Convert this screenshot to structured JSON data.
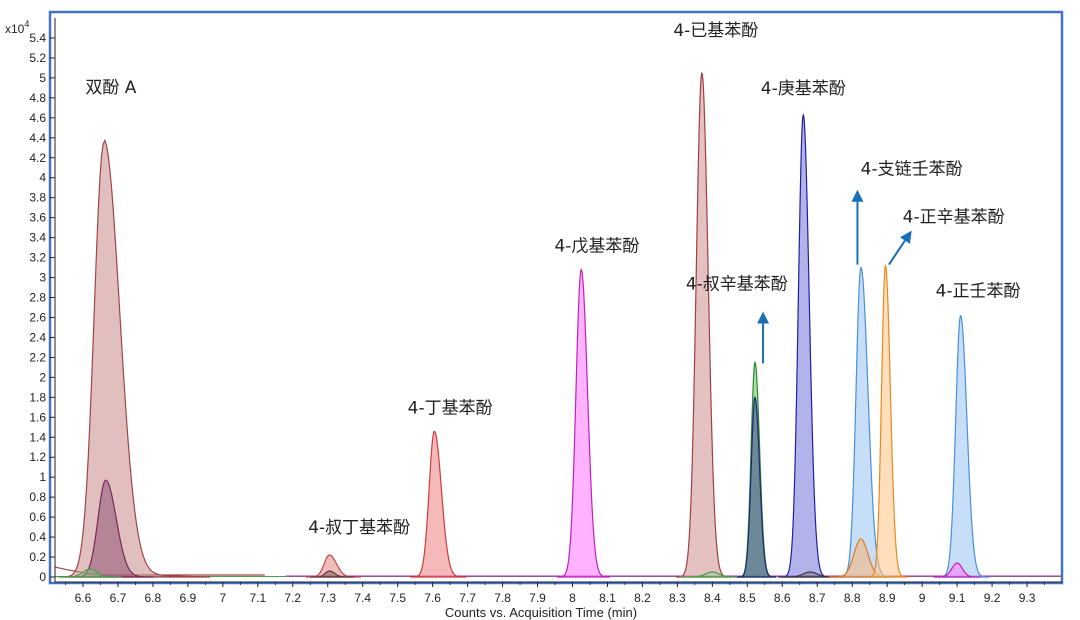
{
  "chart_data": {
    "type": "area",
    "title": "",
    "xlabel": "Counts vs. Acquisition Time (min)",
    "ylabel": "",
    "y_scale_label": "x10",
    "y_scale_exponent": "4",
    "xlim": [
      6.52,
      9.4
    ],
    "ylim": [
      -0.05,
      5.6
    ],
    "x_ticks": [
      6.6,
      6.7,
      6.8,
      6.9,
      7,
      7.1,
      7.2,
      7.3,
      7.4,
      7.5,
      7.6,
      7.7,
      7.8,
      7.9,
      8,
      8.1,
      8.2,
      8.3,
      8.4,
      8.5,
      8.6,
      8.7,
      8.8,
      8.9,
      9,
      9.1,
      9.2,
      9.3
    ],
    "y_ticks": [
      0,
      0.2,
      0.4,
      0.6,
      0.8,
      1,
      1.2,
      1.4,
      1.6,
      1.8,
      2,
      2.2,
      2.4,
      2.6,
      2.8,
      3,
      3.2,
      3.4,
      3.6,
      3.8,
      4,
      4.2,
      4.4,
      4.6,
      4.8,
      5,
      5.2,
      5.4
    ],
    "grid": false,
    "legend": "none",
    "peaks": [
      {
        "label": "双酚 A",
        "x": 6.66,
        "y": 4.35,
        "w1": 0.028,
        "w2": 0.045,
        "tail": 0.1,
        "stroke": "#a04545",
        "fill": "#c98b8b",
        "fill_opacity": 0.55
      },
      {
        "label": "",
        "x": 6.665,
        "y": 0.97,
        "w1": 0.022,
        "w2": 0.03,
        "tail": 0,
        "stroke": "#7a2a5a",
        "fill": "#8a4a6e",
        "fill_opacity": 0.5
      },
      {
        "label": "",
        "x": 6.62,
        "y": 0.08,
        "w1": 0.02,
        "w2": 0.02,
        "tail": 0,
        "stroke": "#4aa04a",
        "fill": "#7fcf7f",
        "fill_opacity": 0.4
      },
      {
        "label": "4-叔丁基苯酚",
        "x": 7.305,
        "y": 0.22,
        "w1": 0.015,
        "w2": 0.02,
        "tail": 0,
        "stroke": "#c04848",
        "fill": "#e89090",
        "fill_opacity": 0.6
      },
      {
        "label": "",
        "x": 7.305,
        "y": 0.06,
        "w1": 0.012,
        "w2": 0.015,
        "tail": 0,
        "stroke": "#5a3a3a",
        "fill": "#7a5a5a",
        "fill_opacity": 0.5
      },
      {
        "label": "4-丁基苯酚",
        "x": 7.605,
        "y": 1.46,
        "w1": 0.015,
        "w2": 0.02,
        "tail": 0,
        "stroke": "#d03a3a",
        "fill": "#f08a8a",
        "fill_opacity": 0.6
      },
      {
        "label": "4-戊基苯酚",
        "x": 8.025,
        "y": 3.08,
        "w1": 0.015,
        "w2": 0.018,
        "tail": 0,
        "stroke": "#c020c0",
        "fill": "#ff80ff",
        "fill_opacity": 0.6
      },
      {
        "label": "4-已基苯酚",
        "x": 8.37,
        "y": 5.05,
        "w1": 0.016,
        "w2": 0.018,
        "tail": 0,
        "stroke": "#a04040",
        "fill": "#d8a8a8",
        "fill_opacity": 0.7
      },
      {
        "label": "",
        "x": 8.4,
        "y": 0.05,
        "w1": 0.02,
        "w2": 0.02,
        "tail": 0,
        "stroke": "#40a040",
        "fill": "#90d090",
        "fill_opacity": 0.4
      },
      {
        "label": "4-叔辛基苯酚",
        "x": 8.522,
        "y": 2.15,
        "w1": 0.011,
        "w2": 0.013,
        "tail": 0,
        "stroke": "#2a8a2a",
        "fill": "#78c878",
        "fill_opacity": 0.6
      },
      {
        "label": "",
        "x": 8.522,
        "y": 1.8,
        "w1": 0.011,
        "w2": 0.013,
        "tail": 0,
        "stroke": "#1a2a7a",
        "fill": "#4a5a8a",
        "fill_opacity": 0.65
      },
      {
        "label": "4-庚基苯酚",
        "x": 8.66,
        "y": 4.63,
        "w1": 0.014,
        "w2": 0.017,
        "tail": 0,
        "stroke": "#2020a0",
        "fill": "#8080e0",
        "fill_opacity": 0.6
      },
      {
        "label": "",
        "x": 8.68,
        "y": 0.05,
        "w1": 0.02,
        "w2": 0.02,
        "tail": 0,
        "stroke": "#3a3a3a",
        "fill": "#6a6a6a",
        "fill_opacity": 0.4
      },
      {
        "label": "4-支链壬苯酚",
        "x": 8.825,
        "y": 3.1,
        "w1": 0.014,
        "w2": 0.02,
        "tail": 0,
        "stroke": "#4a90d8",
        "fill": "#a8cdf2",
        "fill_opacity": 0.65
      },
      {
        "label": "",
        "x": 8.825,
        "y": 0.38,
        "w1": 0.02,
        "w2": 0.02,
        "tail": 0,
        "stroke": "#e07a20",
        "fill": "#f5b880",
        "fill_opacity": 0.6
      },
      {
        "label": "4-正辛基苯酚",
        "x": 8.895,
        "y": 3.12,
        "w1": 0.011,
        "w2": 0.014,
        "tail": 0,
        "stroke": "#e88a20",
        "fill": "#ffc890",
        "fill_opacity": 0.6
      },
      {
        "label": "4-正壬苯酚",
        "x": 9.11,
        "y": 2.62,
        "w1": 0.014,
        "w2": 0.018,
        "tail": 0,
        "stroke": "#4a90d8",
        "fill": "#a8cdf2",
        "fill_opacity": 0.65
      },
      {
        "label": "",
        "x": 9.1,
        "y": 0.14,
        "w1": 0.015,
        "w2": 0.015,
        "tail": 0,
        "stroke": "#c020c0",
        "fill": "#ff80ff",
        "fill_opacity": 0.6
      }
    ],
    "annotations": [
      {
        "text": "双酚 A",
        "x": 6.68,
        "y": 4.85
      },
      {
        "text": "4-叔丁基苯酚",
        "x": 7.39,
        "y": 0.44
      },
      {
        "text": "4-丁基苯酚",
        "x": 7.65,
        "y": 1.64
      },
      {
        "text": "4-戊基苯酚",
        "x": 8.07,
        "y": 3.26
      },
      {
        "text": "4-已基苯酚",
        "x": 8.41,
        "y": 5.42
      },
      {
        "text": "4-叔辛基苯酚",
        "x": 8.47,
        "y": 2.88
      },
      {
        "text": "4-庚基苯酚",
        "x": 8.66,
        "y": 4.84
      },
      {
        "text": "4-支链壬苯酚",
        "x": 8.97,
        "y": 4.03
      },
      {
        "text": "4-正辛基苯酚",
        "x": 9.09,
        "y": 3.55
      },
      {
        "text": "4-正壬苯酚",
        "x": 9.16,
        "y": 2.81
      }
    ],
    "arrows": [
      {
        "x1": 8.545,
        "y1": 2.14,
        "x2": 8.545,
        "y2": 2.66,
        "color": "#1a6fb8"
      },
      {
        "x1": 8.815,
        "y1": 3.13,
        "x2": 8.815,
        "y2": 3.88,
        "color": "#1a6fb8"
      },
      {
        "x1": 8.905,
        "y1": 3.13,
        "x2": 8.97,
        "y2": 3.47,
        "color": "#1a6fb8"
      }
    ],
    "frame_color": "#4472c4"
  }
}
